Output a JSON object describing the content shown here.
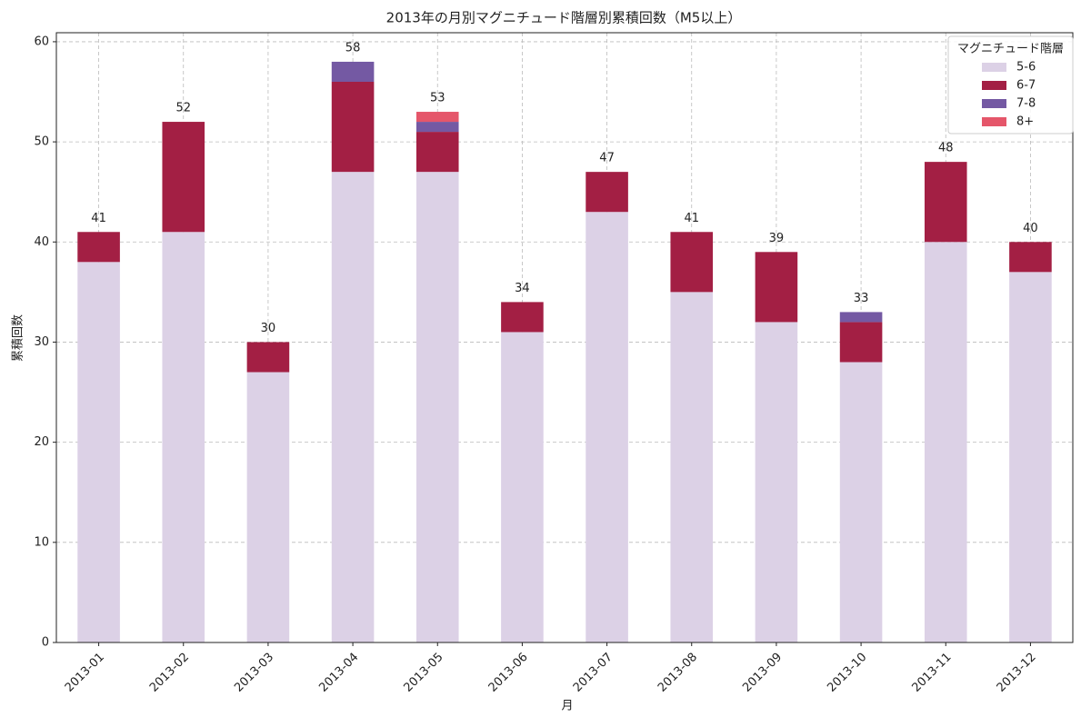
{
  "chart_data": {
    "type": "stacked_bar",
    "title": "2013年の月別マグニチュード階層別累積回数（M5以上）",
    "x_label": "月",
    "y_label": "累積回数",
    "legend_title": "マグニチュード階層",
    "legend": "upper right",
    "grid": true,
    "categories": [
      "2013-01",
      "2013-02",
      "2013-03",
      "2013-04",
      "2013-05",
      "2013-06",
      "2013-07",
      "2013-08",
      "2013-09",
      "2013-10",
      "2013-11",
      "2013-12"
    ],
    "series": [
      {
        "name": "5-6",
        "color": "#dcd1e6",
        "values": [
          38,
          41,
          27,
          47,
          47,
          31,
          43,
          35,
          32,
          28,
          40,
          37
        ]
      },
      {
        "name": "6-7",
        "color": "#a31f44",
        "values": [
          3,
          11,
          3,
          9,
          4,
          3,
          4,
          6,
          7,
          4,
          8,
          3
        ]
      },
      {
        "name": "7-8",
        "color": "#7459a3",
        "values": [
          0,
          0,
          0,
          2,
          1,
          0,
          0,
          0,
          0,
          1,
          0,
          0
        ]
      },
      {
        "name": "8+",
        "color": "#e5566a",
        "values": [
          0,
          0,
          0,
          0,
          1,
          0,
          0,
          0,
          0,
          0,
          0,
          0
        ]
      }
    ],
    "totals": [
      41,
      52,
      30,
      58,
      53,
      34,
      47,
      41,
      39,
      33,
      48,
      40
    ],
    "ylim": [
      0,
      60.9
    ],
    "yticks": [
      0,
      10,
      20,
      30,
      40,
      50,
      60
    ]
  }
}
